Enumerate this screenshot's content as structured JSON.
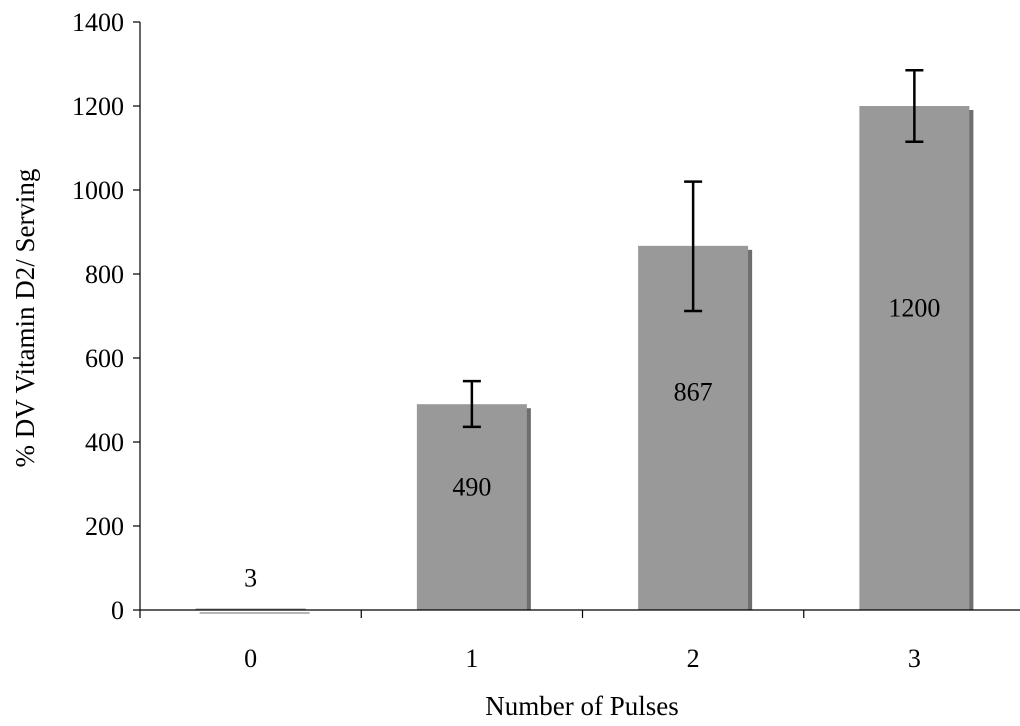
{
  "chart_data": {
    "type": "bar",
    "xlabel": "Number of Pulses",
    "ylabel": "% DV Vitamin D2/ Serving",
    "categories": [
      "0",
      "1",
      "2",
      "3"
    ],
    "values": [
      3,
      490,
      867,
      1200
    ],
    "data_labels": [
      "3",
      "490",
      "867",
      "1200"
    ],
    "error_bars": [
      {
        "low": 3,
        "high": 3
      },
      {
        "low": 436,
        "high": 545
      },
      {
        "low": 712,
        "high": 1020
      },
      {
        "low": 1115,
        "high": 1285
      }
    ],
    "ylim": [
      0,
      1400
    ],
    "yticks": [
      "0",
      "200",
      "400",
      "600",
      "800",
      "1000",
      "1200",
      "1400"
    ],
    "grid": false,
    "legend": "none",
    "colors": {
      "bar": "#999999",
      "bar_shadow": "#6e6e6e",
      "axis": "#000000"
    }
  }
}
